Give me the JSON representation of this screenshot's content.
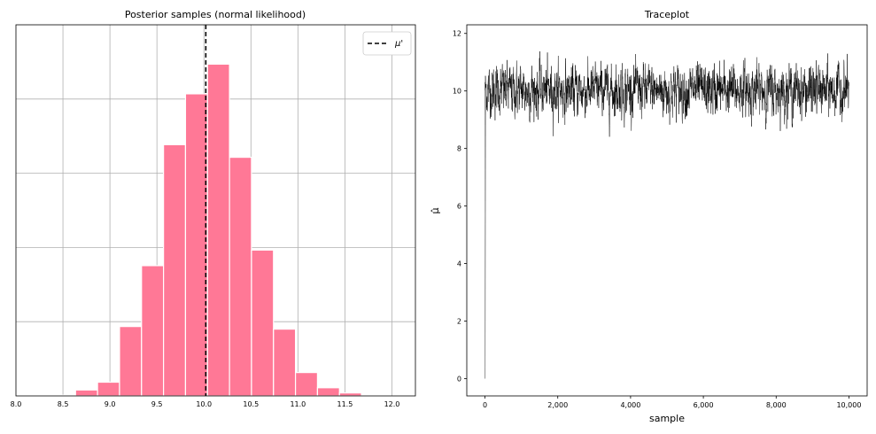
{
  "chart_data": [
    {
      "type": "bar",
      "title": "Posterior samples (normal likelihood)",
      "xlabel": "",
      "ylabel": "",
      "xlim": [
        8.0,
        12.25
      ],
      "ylim": [
        0,
        1.0
      ],
      "y_ticks_visible": false,
      "grid": true,
      "legend_position": "top-right",
      "bar_color": "#ff7896",
      "x_ticks": [
        "8.0",
        "8.5",
        "9.0",
        "9.5",
        "10.0",
        "10.5",
        "11.0",
        "11.5",
        "12.0"
      ],
      "y_grid_levels": [
        0.2,
        0.4,
        0.6,
        0.8
      ],
      "bin_edges": [
        8.4,
        8.634,
        8.868,
        9.102,
        9.336,
        9.57,
        9.804,
        10.038,
        10.272,
        10.506,
        10.74,
        10.974,
        11.208,
        11.442,
        11.676
      ],
      "values": [
        0.002,
        0.016,
        0.037,
        0.187,
        0.351,
        0.677,
        0.814,
        0.894,
        0.643,
        0.393,
        0.18,
        0.063,
        0.022,
        0.008
      ],
      "vline": {
        "x": 10.02,
        "color": "#000000",
        "style": "dashed",
        "label": "μ'"
      }
    },
    {
      "type": "line",
      "title": "Traceplot",
      "xlabel": "sample",
      "ylabel": "μ̂",
      "xlim": [
        -500,
        10500
      ],
      "ylim": [
        -0.6,
        12.3
      ],
      "x_ticks": [
        0,
        2000,
        4000,
        6000,
        8000,
        10000
      ],
      "x_tick_labels": [
        "0",
        "2,000",
        "4,000",
        "6,000",
        "8,000",
        "10,000"
      ],
      "y_ticks": [
        0,
        2,
        4,
        6,
        8,
        10,
        12
      ],
      "y_tick_labels": [
        "0",
        "2",
        "4",
        "6",
        "8",
        "10",
        "12"
      ],
      "grid": false,
      "series": [
        {
          "color": "#000000",
          "start": 0,
          "end": 10000,
          "mean": 10.02,
          "std": 0.45,
          "min_shown": 8.3,
          "max_shown": 11.7,
          "burn_in_from": 0
        }
      ]
    }
  ]
}
